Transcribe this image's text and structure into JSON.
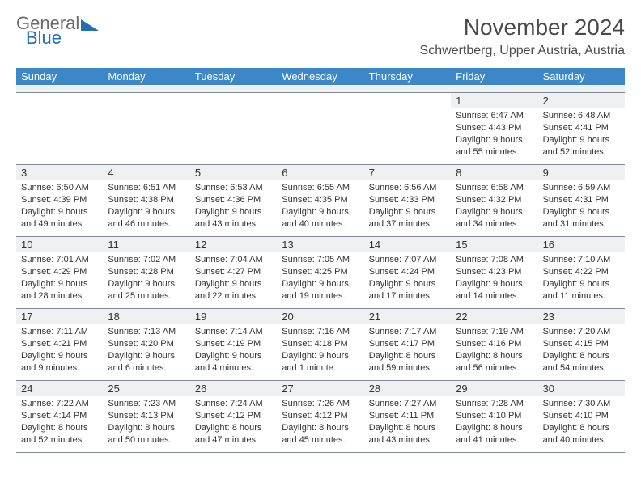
{
  "logo": {
    "text1": "General",
    "text2": "Blue"
  },
  "title": "November 2024",
  "location": "Schwertberg, Upper Austria, Austria",
  "colors": {
    "header_bg": "#3b87c8",
    "header_text": "#ffffff",
    "daynum_bg": "#eef0f2",
    "border": "#7d8a96",
    "logo_gray": "#6b6b6b",
    "logo_blue": "#1f6fb2",
    "text": "#333333",
    "page_bg": "#ffffff"
  },
  "fonts": {
    "title_size_pt": 21,
    "location_size_pt": 12,
    "dayhead_size_pt": 10,
    "daynum_size_pt": 10,
    "info_size_pt": 8
  },
  "dayNames": [
    "Sunday",
    "Monday",
    "Tuesday",
    "Wednesday",
    "Thursday",
    "Friday",
    "Saturday"
  ],
  "weeks": [
    [
      {
        "n": "",
        "sr": "",
        "ss": "",
        "dl": ""
      },
      {
        "n": "",
        "sr": "",
        "ss": "",
        "dl": ""
      },
      {
        "n": "",
        "sr": "",
        "ss": "",
        "dl": ""
      },
      {
        "n": "",
        "sr": "",
        "ss": "",
        "dl": ""
      },
      {
        "n": "",
        "sr": "",
        "ss": "",
        "dl": ""
      },
      {
        "n": "1",
        "sr": "Sunrise: 6:47 AM",
        "ss": "Sunset: 4:43 PM",
        "dl": "Daylight: 9 hours and 55 minutes."
      },
      {
        "n": "2",
        "sr": "Sunrise: 6:48 AM",
        "ss": "Sunset: 4:41 PM",
        "dl": "Daylight: 9 hours and 52 minutes."
      }
    ],
    [
      {
        "n": "3",
        "sr": "Sunrise: 6:50 AM",
        "ss": "Sunset: 4:39 PM",
        "dl": "Daylight: 9 hours and 49 minutes."
      },
      {
        "n": "4",
        "sr": "Sunrise: 6:51 AM",
        "ss": "Sunset: 4:38 PM",
        "dl": "Daylight: 9 hours and 46 minutes."
      },
      {
        "n": "5",
        "sr": "Sunrise: 6:53 AM",
        "ss": "Sunset: 4:36 PM",
        "dl": "Daylight: 9 hours and 43 minutes."
      },
      {
        "n": "6",
        "sr": "Sunrise: 6:55 AM",
        "ss": "Sunset: 4:35 PM",
        "dl": "Daylight: 9 hours and 40 minutes."
      },
      {
        "n": "7",
        "sr": "Sunrise: 6:56 AM",
        "ss": "Sunset: 4:33 PM",
        "dl": "Daylight: 9 hours and 37 minutes."
      },
      {
        "n": "8",
        "sr": "Sunrise: 6:58 AM",
        "ss": "Sunset: 4:32 PM",
        "dl": "Daylight: 9 hours and 34 minutes."
      },
      {
        "n": "9",
        "sr": "Sunrise: 6:59 AM",
        "ss": "Sunset: 4:31 PM",
        "dl": "Daylight: 9 hours and 31 minutes."
      }
    ],
    [
      {
        "n": "10",
        "sr": "Sunrise: 7:01 AM",
        "ss": "Sunset: 4:29 PM",
        "dl": "Daylight: 9 hours and 28 minutes."
      },
      {
        "n": "11",
        "sr": "Sunrise: 7:02 AM",
        "ss": "Sunset: 4:28 PM",
        "dl": "Daylight: 9 hours and 25 minutes."
      },
      {
        "n": "12",
        "sr": "Sunrise: 7:04 AM",
        "ss": "Sunset: 4:27 PM",
        "dl": "Daylight: 9 hours and 22 minutes."
      },
      {
        "n": "13",
        "sr": "Sunrise: 7:05 AM",
        "ss": "Sunset: 4:25 PM",
        "dl": "Daylight: 9 hours and 19 minutes."
      },
      {
        "n": "14",
        "sr": "Sunrise: 7:07 AM",
        "ss": "Sunset: 4:24 PM",
        "dl": "Daylight: 9 hours and 17 minutes."
      },
      {
        "n": "15",
        "sr": "Sunrise: 7:08 AM",
        "ss": "Sunset: 4:23 PM",
        "dl": "Daylight: 9 hours and 14 minutes."
      },
      {
        "n": "16",
        "sr": "Sunrise: 7:10 AM",
        "ss": "Sunset: 4:22 PM",
        "dl": "Daylight: 9 hours and 11 minutes."
      }
    ],
    [
      {
        "n": "17",
        "sr": "Sunrise: 7:11 AM",
        "ss": "Sunset: 4:21 PM",
        "dl": "Daylight: 9 hours and 9 minutes."
      },
      {
        "n": "18",
        "sr": "Sunrise: 7:13 AM",
        "ss": "Sunset: 4:20 PM",
        "dl": "Daylight: 9 hours and 6 minutes."
      },
      {
        "n": "19",
        "sr": "Sunrise: 7:14 AM",
        "ss": "Sunset: 4:19 PM",
        "dl": "Daylight: 9 hours and 4 minutes."
      },
      {
        "n": "20",
        "sr": "Sunrise: 7:16 AM",
        "ss": "Sunset: 4:18 PM",
        "dl": "Daylight: 9 hours and 1 minute."
      },
      {
        "n": "21",
        "sr": "Sunrise: 7:17 AM",
        "ss": "Sunset: 4:17 PM",
        "dl": "Daylight: 8 hours and 59 minutes."
      },
      {
        "n": "22",
        "sr": "Sunrise: 7:19 AM",
        "ss": "Sunset: 4:16 PM",
        "dl": "Daylight: 8 hours and 56 minutes."
      },
      {
        "n": "23",
        "sr": "Sunrise: 7:20 AM",
        "ss": "Sunset: 4:15 PM",
        "dl": "Daylight: 8 hours and 54 minutes."
      }
    ],
    [
      {
        "n": "24",
        "sr": "Sunrise: 7:22 AM",
        "ss": "Sunset: 4:14 PM",
        "dl": "Daylight: 8 hours and 52 minutes."
      },
      {
        "n": "25",
        "sr": "Sunrise: 7:23 AM",
        "ss": "Sunset: 4:13 PM",
        "dl": "Daylight: 8 hours and 50 minutes."
      },
      {
        "n": "26",
        "sr": "Sunrise: 7:24 AM",
        "ss": "Sunset: 4:12 PM",
        "dl": "Daylight: 8 hours and 47 minutes."
      },
      {
        "n": "27",
        "sr": "Sunrise: 7:26 AM",
        "ss": "Sunset: 4:12 PM",
        "dl": "Daylight: 8 hours and 45 minutes."
      },
      {
        "n": "28",
        "sr": "Sunrise: 7:27 AM",
        "ss": "Sunset: 4:11 PM",
        "dl": "Daylight: 8 hours and 43 minutes."
      },
      {
        "n": "29",
        "sr": "Sunrise: 7:28 AM",
        "ss": "Sunset: 4:10 PM",
        "dl": "Daylight: 8 hours and 41 minutes."
      },
      {
        "n": "30",
        "sr": "Sunrise: 7:30 AM",
        "ss": "Sunset: 4:10 PM",
        "dl": "Daylight: 8 hours and 40 minutes."
      }
    ]
  ]
}
